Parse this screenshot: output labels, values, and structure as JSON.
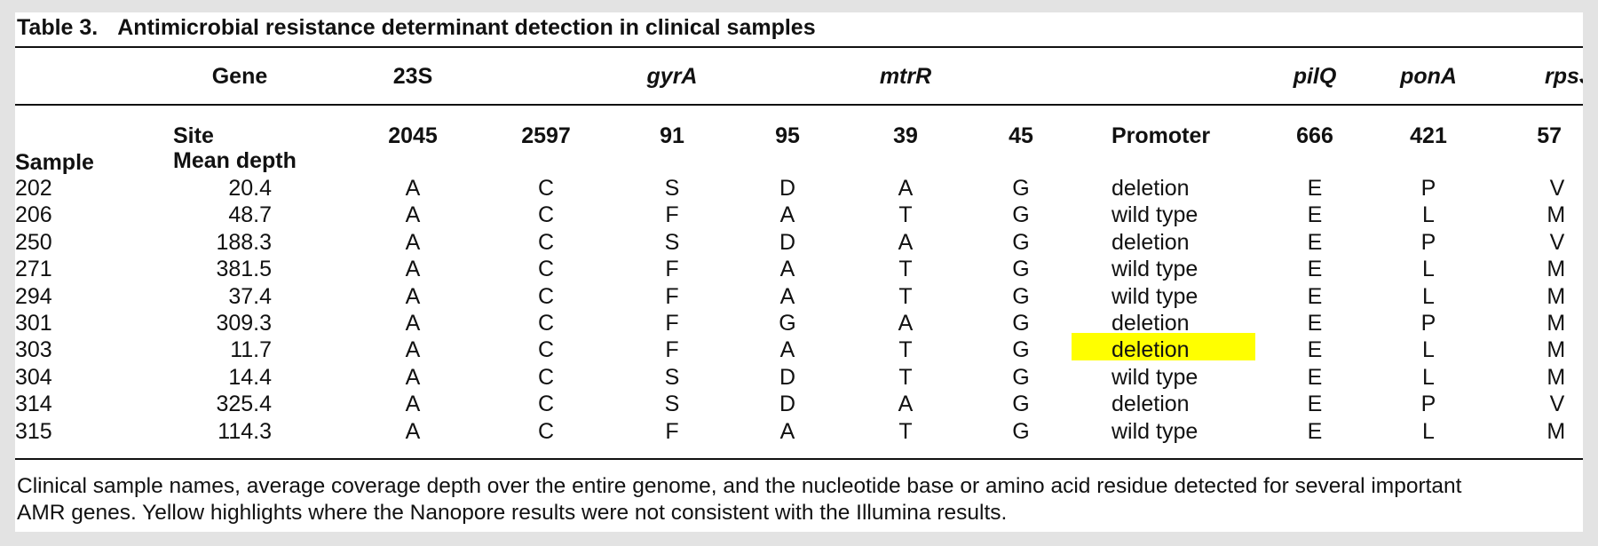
{
  "table": {
    "label": "Table 3.",
    "caption": "Antimicrobial resistance determinant detection in clinical samples",
    "gene_row": {
      "label": "Gene",
      "groups": [
        "23S",
        "gyrA",
        "mtrR",
        "pilQ",
        "ponA",
        "rpsJ"
      ]
    },
    "site_row": {
      "label": "Site",
      "sites": [
        "2045",
        "2597",
        "91",
        "95",
        "39",
        "45",
        "Promoter",
        "666",
        "421",
        "57"
      ]
    },
    "column_headers": {
      "sample": "Sample",
      "mean_depth": "Mean depth"
    },
    "rows": [
      {
        "sample": "202",
        "depth": "20.4",
        "values": [
          "A",
          "C",
          "S",
          "D",
          "A",
          "G",
          "deletion",
          "E",
          "P",
          "V"
        ]
      },
      {
        "sample": "206",
        "depth": "48.7",
        "values": [
          "A",
          "C",
          "F",
          "A",
          "T",
          "G",
          "wild type",
          "E",
          "L",
          "M"
        ]
      },
      {
        "sample": "250",
        "depth": "188.3",
        "values": [
          "A",
          "C",
          "S",
          "D",
          "A",
          "G",
          "deletion",
          "E",
          "P",
          "V"
        ]
      },
      {
        "sample": "271",
        "depth": "381.5",
        "values": [
          "A",
          "C",
          "F",
          "A",
          "T",
          "G",
          "wild type",
          "E",
          "L",
          "M"
        ]
      },
      {
        "sample": "294",
        "depth": "37.4",
        "values": [
          "A",
          "C",
          "F",
          "A",
          "T",
          "G",
          "wild type",
          "E",
          "L",
          "M"
        ]
      },
      {
        "sample": "301",
        "depth": "309.3",
        "values": [
          "A",
          "C",
          "F",
          "G",
          "A",
          "G",
          "deletion",
          "E",
          "P",
          "M"
        ]
      },
      {
        "sample": "303",
        "depth": "11.7",
        "values": [
          "A",
          "C",
          "F",
          "A",
          "T",
          "G",
          "deletion",
          "E",
          "L",
          "M"
        ]
      },
      {
        "sample": "304",
        "depth": "14.4",
        "values": [
          "A",
          "C",
          "S",
          "D",
          "T",
          "G",
          "wild type",
          "E",
          "L",
          "M"
        ]
      },
      {
        "sample": "314",
        "depth": "325.4",
        "values": [
          "A",
          "C",
          "S",
          "D",
          "A",
          "G",
          "deletion",
          "E",
          "P",
          "V"
        ]
      },
      {
        "sample": "315",
        "depth": "114.3",
        "values": [
          "A",
          "C",
          "F",
          "A",
          "T",
          "G",
          "wild type",
          "E",
          "L",
          "M"
        ]
      }
    ],
    "highlight": {
      "row": 6,
      "column": 6,
      "color": "#ffff00"
    },
    "footnote_lines": [
      "Clinical sample names, average coverage depth over the entire genome, and the nucleotide base or amino acid residue detected for several important",
      "AMR genes. Yellow highlights where the Nanopore results were not consistent with the Illumina results."
    ]
  }
}
